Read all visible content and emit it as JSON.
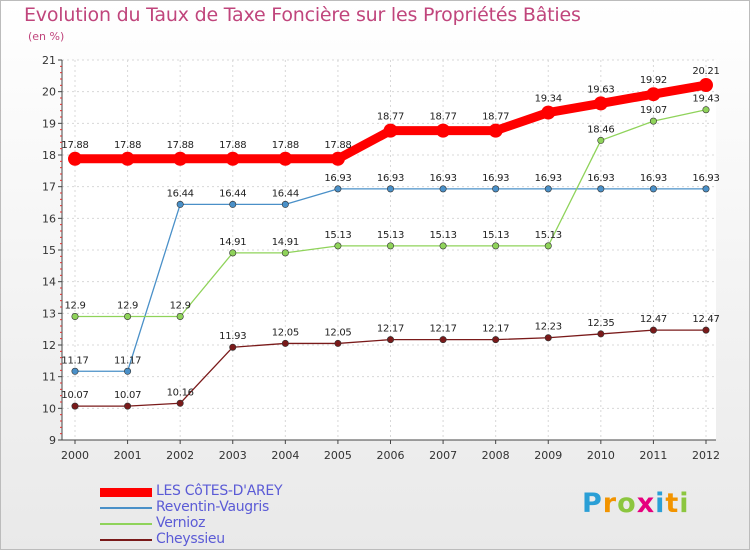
{
  "title": "Evolution du Taux de Taxe Foncière sur les Propriétés Bâties",
  "subtitle": "(en %)",
  "logo": {
    "text": "Proxiti",
    "letters": [
      {
        "ch": "P",
        "color": "#2a9fd6"
      },
      {
        "ch": "r",
        "color": "#f29400"
      },
      {
        "ch": "o",
        "color": "#8cc63f"
      },
      {
        "ch": "x",
        "color": "#e6007e"
      },
      {
        "ch": "i",
        "color": "#2a9fd6"
      },
      {
        "ch": "t",
        "color": "#f29400"
      },
      {
        "ch": "i",
        "color": "#8cc63f"
      }
    ]
  },
  "chart_data": {
    "type": "line",
    "title": "Evolution du Taux de Taxe Foncière sur les Propriétés Bâties",
    "ylabel": "(en %)",
    "xlabel": "",
    "ylim": [
      9,
      21
    ],
    "yticks": [
      "9",
      "10",
      "11",
      "12",
      "13",
      "14",
      "15",
      "16",
      "17",
      "18",
      "19",
      "20",
      "21"
    ],
    "categories": [
      "2000",
      "2001",
      "2002",
      "2003",
      "2004",
      "2005",
      "2006",
      "2007",
      "2008",
      "2009",
      "2010",
      "2011",
      "2012"
    ],
    "grid": true,
    "legend": "bottom-left",
    "series": [
      {
        "name": "LES CôTES-D'AREY",
        "color": "#ff0000",
        "values": [
          17.88,
          17.88,
          17.88,
          17.88,
          17.88,
          17.88,
          18.77,
          18.77,
          18.77,
          19.34,
          19.63,
          19.92,
          20.21
        ],
        "labels": [
          "17.88",
          "17.88",
          "17.88",
          "17.88",
          "17.88",
          "17.88",
          "18.77",
          "18.77",
          "18.77",
          "19.34",
          "19.63",
          "19.92",
          "20.21"
        ]
      },
      {
        "name": "Reventin-Vaugris",
        "color": "#4a90c8",
        "values": [
          11.17,
          11.17,
          16.44,
          16.44,
          16.44,
          16.93,
          16.93,
          16.93,
          16.93,
          16.93,
          16.93,
          16.93,
          16.93
        ],
        "labels": [
          "11.17",
          "11.17",
          "16.44",
          "16.44",
          "16.44",
          "16.93",
          "16.93",
          "16.93",
          "16.93",
          "16.93",
          "16.93",
          "16.93",
          "16.93"
        ]
      },
      {
        "name": "Vernioz",
        "color": "#8fd35a",
        "values": [
          12.9,
          12.9,
          12.9,
          14.91,
          14.91,
          15.13,
          15.13,
          15.13,
          15.13,
          15.13,
          18.46,
          19.07,
          19.43
        ],
        "labels": [
          "12.9",
          "12.9",
          "12.9",
          "14.91",
          "14.91",
          "15.13",
          "15.13",
          "15.13",
          "15.13",
          "15.13",
          "18.46",
          "19.07",
          "19.43"
        ]
      },
      {
        "name": "Cheyssieu",
        "color": "#7a1a1a",
        "values": [
          10.07,
          10.07,
          10.16,
          11.93,
          12.05,
          12.05,
          12.17,
          12.17,
          12.17,
          12.23,
          12.35,
          12.47,
          12.47
        ],
        "labels": [
          "10.07",
          "10.07",
          "10.16",
          "11.93",
          "12.05",
          "12.05",
          "12.17",
          "12.17",
          "12.17",
          "12.23",
          "12.35",
          "12.47",
          "12.47"
        ]
      }
    ]
  }
}
